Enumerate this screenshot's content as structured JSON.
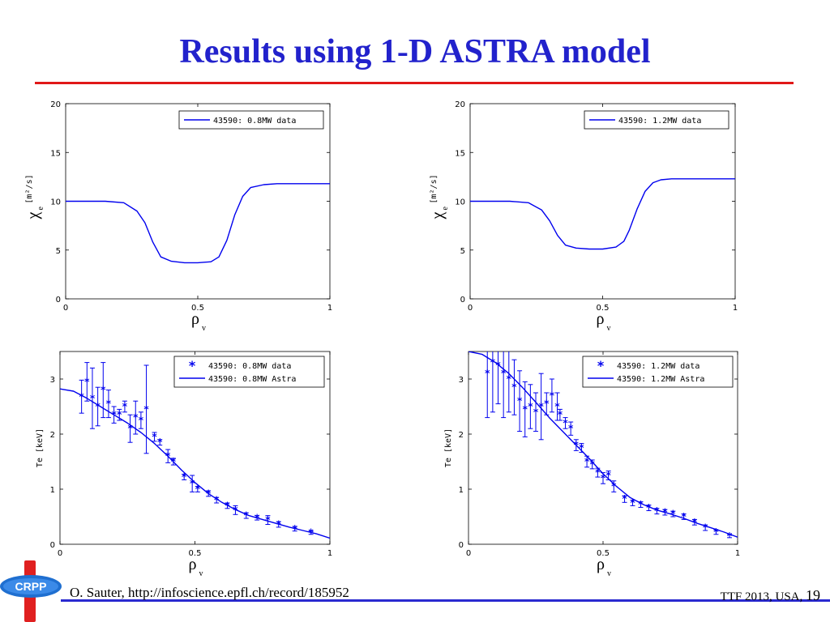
{
  "slide": {
    "title": "Results using 1-D ASTRA model",
    "footer_citation": "O. Sauter, http://infoscience.epfl.ch/record/185952",
    "footer_event": "TTF 2013, USA,",
    "page_number": "19",
    "logo_text": "CRPP"
  },
  "colors": {
    "title": "#2222cc",
    "rule": "#e01818",
    "series": "#0000ee",
    "footer_rule": "#2a2ad0"
  },
  "chart_data": [
    {
      "type": "line",
      "ylabel_main": "χ",
      "ylabel_sub": "e",
      "ylabel_units": "[m²/s]",
      "xlabel_main": "ρ",
      "xlabel_sub": "v",
      "xlim": [
        0,
        1
      ],
      "ylim": [
        0,
        20
      ],
      "xticks": [
        "0",
        "0.5",
        "1"
      ],
      "yticks": [
        "0",
        "5",
        "10",
        "15",
        "20"
      ],
      "xtick_values": [
        0,
        0.5,
        1
      ],
      "ytick_values": [
        0,
        5,
        10,
        15,
        20
      ],
      "legend_placement": "top-right",
      "series": [
        {
          "name": "43590: 0.8MW data",
          "style": "line",
          "x": [
            0,
            0.15,
            0.22,
            0.27,
            0.3,
            0.33,
            0.36,
            0.4,
            0.45,
            0.5,
            0.55,
            0.58,
            0.61,
            0.64,
            0.67,
            0.7,
            0.75,
            0.8,
            0.9,
            1.0
          ],
          "y": [
            10,
            10,
            9.85,
            9.0,
            7.8,
            5.8,
            4.3,
            3.85,
            3.7,
            3.7,
            3.8,
            4.3,
            6.0,
            8.6,
            10.5,
            11.4,
            11.7,
            11.8,
            11.8,
            11.8
          ]
        }
      ]
    },
    {
      "type": "line",
      "ylabel_main": "χ",
      "ylabel_sub": "e",
      "ylabel_units": "[m²/s]",
      "xlabel_main": "ρ",
      "xlabel_sub": "v",
      "xlim": [
        0,
        1
      ],
      "ylim": [
        0,
        20
      ],
      "xticks": [
        "0",
        "0.5",
        "1"
      ],
      "yticks": [
        "0",
        "5",
        "10",
        "15",
        "20"
      ],
      "xtick_values": [
        0,
        0.5,
        1
      ],
      "ytick_values": [
        0,
        5,
        10,
        15,
        20
      ],
      "legend_placement": "top-right",
      "series": [
        {
          "name": "43590: 1.2MW data",
          "style": "line",
          "x": [
            0,
            0.15,
            0.22,
            0.27,
            0.3,
            0.33,
            0.36,
            0.4,
            0.45,
            0.5,
            0.55,
            0.58,
            0.6,
            0.63,
            0.66,
            0.69,
            0.72,
            0.76,
            0.85,
            1.0
          ],
          "y": [
            10,
            10,
            9.85,
            9.1,
            8.0,
            6.5,
            5.5,
            5.2,
            5.1,
            5.1,
            5.3,
            5.9,
            7.0,
            9.2,
            11.0,
            11.9,
            12.2,
            12.3,
            12.3,
            12.3
          ]
        }
      ]
    },
    {
      "type": "line",
      "ylabel_main": "Te [keV]",
      "ylabel_sub": "",
      "ylabel_units": "",
      "xlabel_main": "ρ",
      "xlabel_sub": "v",
      "xlim": [
        0,
        1
      ],
      "ylim": [
        0,
        3.5
      ],
      "xticks": [
        "0",
        "0.5",
        "1"
      ],
      "yticks": [
        "0",
        "1",
        "2",
        "3"
      ],
      "xtick_values": [
        0,
        0.5,
        1
      ],
      "ytick_values": [
        0,
        1,
        2,
        3
      ],
      "legend_placement": "top-right",
      "series": [
        {
          "name": "43590: 0.8MW data",
          "style": "errorbar",
          "x": [
            0.08,
            0.1,
            0.12,
            0.14,
            0.16,
            0.18,
            0.2,
            0.22,
            0.24,
            0.26,
            0.28,
            0.3,
            0.32,
            0.35,
            0.37,
            0.4,
            0.42,
            0.46,
            0.49,
            0.51,
            0.55,
            0.58,
            0.62,
            0.65,
            0.69,
            0.73,
            0.77,
            0.81,
            0.87,
            0.93
          ],
          "y": [
            2.68,
            2.95,
            2.65,
            2.5,
            2.8,
            2.55,
            2.35,
            2.35,
            2.5,
            2.1,
            2.3,
            2.25,
            2.45,
            1.95,
            1.85,
            1.6,
            1.5,
            1.22,
            1.1,
            1.0,
            0.92,
            0.8,
            0.7,
            0.62,
            0.52,
            0.48,
            0.44,
            0.36,
            0.28,
            0.21
          ],
          "err": [
            0.3,
            0.35,
            0.55,
            0.35,
            0.5,
            0.25,
            0.15,
            0.1,
            0.1,
            0.25,
            0.3,
            0.15,
            0.8,
            0.08,
            0.05,
            0.12,
            0.06,
            0.05,
            0.15,
            0.05,
            0.05,
            0.05,
            0.05,
            0.08,
            0.05,
            0.04,
            0.08,
            0.05,
            0.04,
            0.03
          ]
        },
        {
          "name": "43590: 0.8MW Astra",
          "style": "line",
          "x": [
            0.0,
            0.05,
            0.1,
            0.15,
            0.2,
            0.25,
            0.3,
            0.35,
            0.4,
            0.45,
            0.5,
            0.55,
            0.6,
            0.65,
            0.7,
            0.75,
            0.8,
            0.85,
            0.9,
            0.95,
            1.0
          ],
          "y": [
            2.82,
            2.78,
            2.65,
            2.5,
            2.35,
            2.2,
            2.03,
            1.83,
            1.6,
            1.35,
            1.12,
            0.92,
            0.76,
            0.63,
            0.52,
            0.45,
            0.38,
            0.31,
            0.25,
            0.19,
            0.11
          ]
        }
      ]
    },
    {
      "type": "line",
      "ylabel_main": "Te [keV]",
      "ylabel_sub": "",
      "ylabel_units": "",
      "xlabel_main": "ρ",
      "xlabel_sub": "v",
      "xlim": [
        0,
        1
      ],
      "ylim": [
        0,
        3.5
      ],
      "xticks": [
        "0",
        "0.5",
        "1"
      ],
      "yticks": [
        "0",
        "1",
        "2",
        "3"
      ],
      "xtick_values": [
        0,
        0.5,
        1
      ],
      "ytick_values": [
        0,
        1,
        2,
        3
      ],
      "legend_placement": "top-right",
      "series": [
        {
          "name": "43590: 1.2MW data",
          "style": "errorbar",
          "x": [
            0.07,
            0.09,
            0.11,
            0.13,
            0.15,
            0.17,
            0.19,
            0.21,
            0.23,
            0.25,
            0.27,
            0.29,
            0.31,
            0.33,
            0.34,
            0.36,
            0.38,
            0.4,
            0.42,
            0.44,
            0.46,
            0.48,
            0.5,
            0.52,
            0.54,
            0.58,
            0.61,
            0.64,
            0.67,
            0.7,
            0.73,
            0.76,
            0.8,
            0.84,
            0.88,
            0.92,
            0.97
          ],
          "y": [
            3.1,
            3.3,
            3.25,
            3.1,
            3.0,
            2.85,
            2.6,
            2.45,
            2.5,
            2.4,
            2.5,
            2.55,
            2.7,
            2.5,
            2.35,
            2.2,
            2.1,
            1.8,
            1.75,
            1.5,
            1.45,
            1.3,
            1.2,
            1.25,
            1.05,
            0.82,
            0.75,
            0.72,
            0.66,
            0.6,
            0.58,
            0.55,
            0.5,
            0.4,
            0.3,
            0.22,
            0.15
          ],
          "err": [
            0.8,
            0.9,
            0.7,
            0.8,
            0.6,
            0.5,
            0.55,
            0.5,
            0.4,
            0.35,
            0.6,
            0.2,
            0.3,
            0.25,
            0.1,
            0.1,
            0.12,
            0.1,
            0.08,
            0.1,
            0.08,
            0.08,
            0.1,
            0.08,
            0.1,
            0.06,
            0.05,
            0.05,
            0.05,
            0.05,
            0.05,
            0.05,
            0.05,
            0.05,
            0.05,
            0.04,
            0.03
          ]
        },
        {
          "name": "43590: 1.2MW Astra",
          "style": "line",
          "x": [
            0.0,
            0.05,
            0.1,
            0.15,
            0.2,
            0.25,
            0.3,
            0.35,
            0.4,
            0.45,
            0.5,
            0.55,
            0.6,
            0.65,
            0.7,
            0.75,
            0.8,
            0.85,
            0.9,
            0.95,
            1.0
          ],
          "y": [
            3.5,
            3.45,
            3.3,
            3.1,
            2.85,
            2.58,
            2.3,
            2.05,
            1.8,
            1.55,
            1.28,
            1.05,
            0.85,
            0.72,
            0.62,
            0.55,
            0.47,
            0.38,
            0.3,
            0.22,
            0.13
          ]
        }
      ]
    }
  ]
}
